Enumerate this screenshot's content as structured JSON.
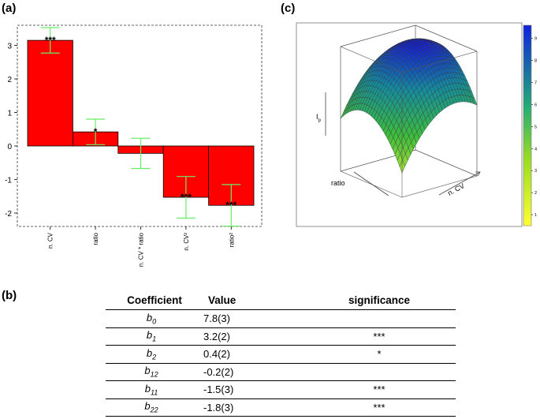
{
  "labels": {
    "a": "(a)",
    "b": "(b)",
    "c": "(c)"
  },
  "chart_data": [
    {
      "type": "bar",
      "categories": [
        "n. CV",
        "ratio",
        "n. CV * ratio",
        "n. CV²",
        "ratio²"
      ],
      "values": [
        3.15,
        0.42,
        -0.22,
        -1.53,
        -1.77
      ],
      "error": [
        0.38,
        0.38,
        0.45,
        0.62,
        0.62
      ],
      "significance": [
        "***",
        "*",
        "",
        "***",
        "***"
      ],
      "yticks": [
        -2,
        -1,
        0,
        1,
        2,
        3
      ],
      "ylim": [
        -2.4,
        3.6
      ],
      "bar_color": "#ff0000",
      "error_color": "#66ee66"
    },
    {
      "type": "surface",
      "axes": {
        "z": "Ip",
        "x": "n. CV",
        "y": "ratio"
      },
      "colorbar_ticks": [
        1,
        2,
        3,
        4,
        5,
        6,
        7,
        8,
        9
      ],
      "colorscale": [
        "#ffff33",
        "#33cc33",
        "#1133cc"
      ]
    }
  ],
  "table": {
    "headers": [
      "Coefficient",
      "Value",
      "significance"
    ],
    "rows": [
      {
        "coef": "b",
        "sub": "0",
        "value": "7.8(3)",
        "sig": ""
      },
      {
        "coef": "b",
        "sub": "1",
        "value": "3.2(2)",
        "sig": "***"
      },
      {
        "coef": "b",
        "sub": "2",
        "value": "0.4(2)",
        "sig": "*"
      },
      {
        "coef": "b",
        "sub": "12",
        "value": "-0.2(2)",
        "sig": ""
      },
      {
        "coef": "b",
        "sub": "11",
        "value": "-1.5(3)",
        "sig": "***"
      },
      {
        "coef": "b",
        "sub": "22",
        "value": "-1.8(3)",
        "sig": "***"
      }
    ]
  }
}
